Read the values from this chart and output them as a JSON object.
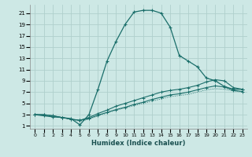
{
  "xlabel": "Humidex (Indice chaleur)",
  "background_color": "#cde8e5",
  "grid_color": "#b0d0cc",
  "line_color": "#1a6e6a",
  "xlim": [
    -0.5,
    23.5
  ],
  "ylim": [
    0.5,
    22.5
  ],
  "xticks": [
    0,
    1,
    2,
    3,
    4,
    5,
    6,
    7,
    8,
    9,
    10,
    11,
    12,
    13,
    14,
    15,
    16,
    17,
    18,
    19,
    20,
    21,
    22,
    23
  ],
  "yticks": [
    1,
    3,
    5,
    7,
    9,
    11,
    13,
    15,
    17,
    19,
    21
  ],
  "curve_main": {
    "x": [
      0,
      1,
      2,
      3,
      4,
      5,
      6,
      7,
      8,
      9,
      10,
      11,
      12,
      13,
      14,
      15,
      16,
      17,
      18,
      19,
      20,
      21,
      22,
      23
    ],
    "y": [
      3,
      2.8,
      2.6,
      2.5,
      2.3,
      1.2,
      3.0,
      7.5,
      12.5,
      16,
      19,
      21.2,
      21.5,
      21.5,
      21,
      18.5,
      13.5,
      12.5,
      11.5,
      9.5,
      9.0,
      8.0,
      7.5,
      7.5
    ]
  },
  "curve2": {
    "x": [
      0,
      1,
      2,
      3,
      4,
      5,
      6,
      7,
      8,
      9,
      10,
      11,
      12,
      13,
      14,
      15,
      16,
      17,
      18,
      19,
      20,
      21,
      22,
      23
    ],
    "y": [
      3,
      3.0,
      2.8,
      2.5,
      2.2,
      2.0,
      2.5,
      3.2,
      3.8,
      4.5,
      5.0,
      5.5,
      6.0,
      6.5,
      7.0,
      7.3,
      7.5,
      7.8,
      8.2,
      8.8,
      9.2,
      9.0,
      7.8,
      7.5
    ]
  },
  "curve3": {
    "x": [
      0,
      1,
      2,
      3,
      4,
      5,
      6,
      7,
      8,
      9,
      10,
      11,
      12,
      13,
      14,
      15,
      16,
      17,
      18,
      19,
      20,
      21,
      22,
      23
    ],
    "y": [
      3,
      3.0,
      2.8,
      2.5,
      2.2,
      2.0,
      2.3,
      2.9,
      3.4,
      3.9,
      4.3,
      4.8,
      5.2,
      5.7,
      6.1,
      6.5,
      6.7,
      7.0,
      7.4,
      7.8,
      8.1,
      7.9,
      7.3,
      7.1
    ]
  },
  "curve_dot": {
    "x": [
      0,
      1,
      2,
      3,
      4,
      5,
      6,
      7,
      8,
      9,
      10,
      11,
      12,
      13,
      14,
      15,
      16,
      17,
      18,
      19,
      20,
      21,
      22,
      23
    ],
    "y": [
      3,
      2.9,
      2.7,
      2.5,
      2.2,
      1.8,
      2.2,
      2.8,
      3.3,
      3.8,
      4.2,
      4.6,
      5.0,
      5.4,
      5.8,
      6.2,
      6.4,
      6.6,
      7.0,
      7.4,
      7.6,
      7.5,
      7.2,
      7.0
    ]
  }
}
